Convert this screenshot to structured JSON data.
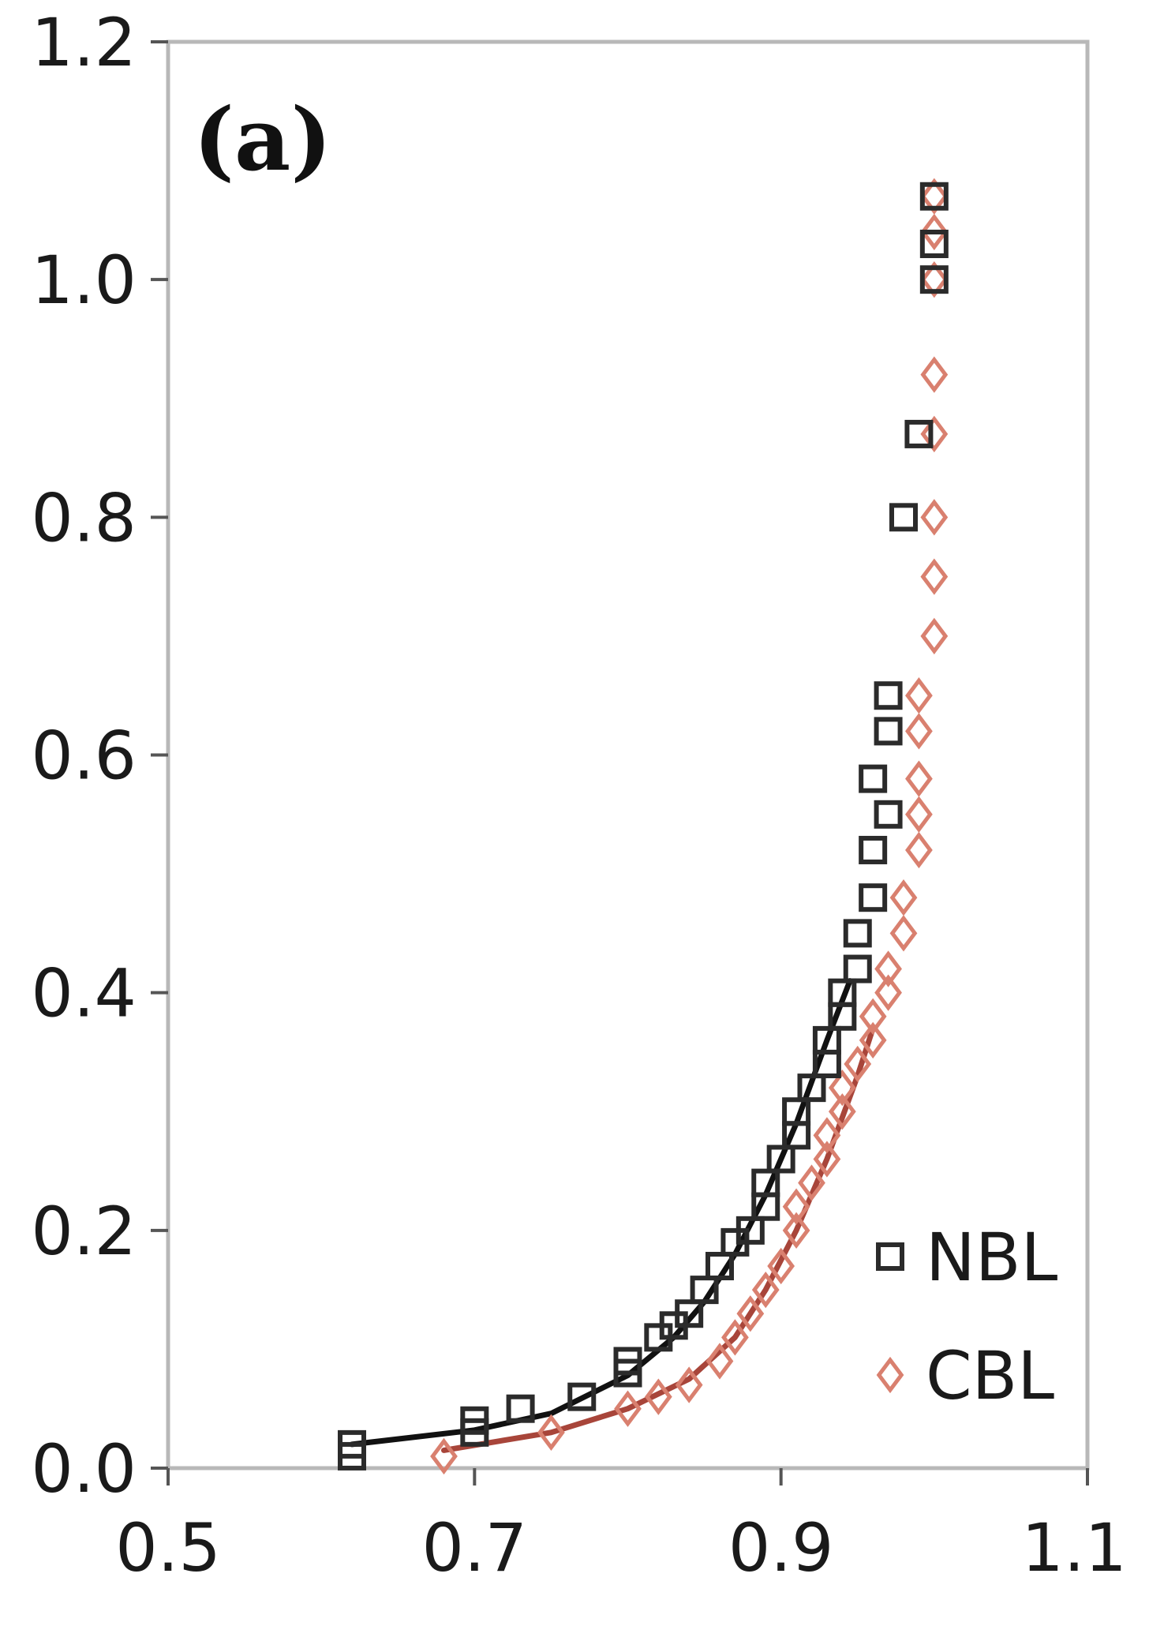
{
  "chart_data": {
    "type": "scatter",
    "panel_label": "(a)",
    "title": "",
    "xlabel": "",
    "ylabel": "",
    "xlim": [
      0.5,
      1.1
    ],
    "ylim": [
      0.0,
      1.2
    ],
    "xticks": [
      0.5,
      0.7,
      0.9,
      1.1
    ],
    "xtick_labels": [
      "0.5",
      "0.7",
      "0.9",
      "1.1"
    ],
    "yticks": [
      0.0,
      0.2,
      0.4,
      0.6,
      0.8,
      1.0,
      1.2
    ],
    "ytick_labels": [
      "0.0",
      "0.2",
      "0.4",
      "0.6",
      "0.8",
      "1.0",
      "1.2"
    ],
    "grid": false,
    "legend_position": "bottom-right",
    "series": [
      {
        "name": "NBL",
        "marker": "square",
        "color": "#2b2b2b",
        "fit_color": "#111111",
        "points": [
          [
            0.62,
            0.02
          ],
          [
            0.62,
            0.01
          ],
          [
            0.7,
            0.04
          ],
          [
            0.7,
            0.03
          ],
          [
            0.73,
            0.05
          ],
          [
            0.77,
            0.06
          ],
          [
            0.8,
            0.08
          ],
          [
            0.8,
            0.09
          ],
          [
            0.82,
            0.11
          ],
          [
            0.83,
            0.12
          ],
          [
            0.84,
            0.13
          ],
          [
            0.85,
            0.15
          ],
          [
            0.86,
            0.17
          ],
          [
            0.87,
            0.19
          ],
          [
            0.88,
            0.2
          ],
          [
            0.89,
            0.22
          ],
          [
            0.89,
            0.24
          ],
          [
            0.9,
            0.26
          ],
          [
            0.91,
            0.28
          ],
          [
            0.91,
            0.3
          ],
          [
            0.92,
            0.32
          ],
          [
            0.93,
            0.34
          ],
          [
            0.93,
            0.36
          ],
          [
            0.94,
            0.38
          ],
          [
            0.94,
            0.4
          ],
          [
            0.95,
            0.42
          ],
          [
            0.95,
            0.45
          ],
          [
            0.96,
            0.48
          ],
          [
            0.96,
            0.52
          ],
          [
            0.97,
            0.55
          ],
          [
            0.96,
            0.58
          ],
          [
            0.97,
            0.62
          ],
          [
            0.97,
            0.65
          ],
          [
            0.98,
            0.8
          ],
          [
            0.99,
            0.87
          ],
          [
            1.0,
            1.0
          ],
          [
            1.0,
            1.03
          ],
          [
            1.0,
            1.07
          ]
        ],
        "fit": [
          [
            0.62,
            0.02
          ],
          [
            0.7,
            0.032
          ],
          [
            0.75,
            0.046
          ],
          [
            0.8,
            0.078
          ],
          [
            0.83,
            0.11
          ],
          [
            0.85,
            0.14
          ],
          [
            0.87,
            0.18
          ],
          [
            0.89,
            0.23
          ],
          [
            0.91,
            0.29
          ],
          [
            0.93,
            0.36
          ],
          [
            0.945,
            0.41
          ]
        ]
      },
      {
        "name": "CBL",
        "marker": "diamond",
        "color": "#d9806f",
        "fit_color": "#a8453a",
        "points": [
          [
            0.68,
            0.01
          ],
          [
            0.75,
            0.03
          ],
          [
            0.8,
            0.05
          ],
          [
            0.82,
            0.06
          ],
          [
            0.84,
            0.07
          ],
          [
            0.86,
            0.09
          ],
          [
            0.87,
            0.11
          ],
          [
            0.88,
            0.13
          ],
          [
            0.89,
            0.15
          ],
          [
            0.9,
            0.17
          ],
          [
            0.91,
            0.2
          ],
          [
            0.91,
            0.22
          ],
          [
            0.92,
            0.24
          ],
          [
            0.93,
            0.26
          ],
          [
            0.93,
            0.28
          ],
          [
            0.94,
            0.3
          ],
          [
            0.94,
            0.32
          ],
          [
            0.95,
            0.34
          ],
          [
            0.96,
            0.36
          ],
          [
            0.96,
            0.38
          ],
          [
            0.97,
            0.4
          ],
          [
            0.97,
            0.42
          ],
          [
            0.98,
            0.45
          ],
          [
            0.98,
            0.48
          ],
          [
            0.99,
            0.52
          ],
          [
            0.99,
            0.55
          ],
          [
            0.99,
            0.58
          ],
          [
            0.99,
            0.62
          ],
          [
            0.99,
            0.65
          ],
          [
            1.0,
            0.7
          ],
          [
            1.0,
            0.75
          ],
          [
            1.0,
            0.8
          ],
          [
            1.0,
            0.87
          ],
          [
            1.0,
            0.92
          ],
          [
            1.0,
            1.0
          ],
          [
            1.0,
            1.04
          ],
          [
            1.0,
            1.07
          ]
        ],
        "fit": [
          [
            0.68,
            0.015
          ],
          [
            0.75,
            0.03
          ],
          [
            0.8,
            0.05
          ],
          [
            0.84,
            0.075
          ],
          [
            0.87,
            0.11
          ],
          [
            0.89,
            0.15
          ],
          [
            0.91,
            0.2
          ],
          [
            0.93,
            0.26
          ],
          [
            0.95,
            0.33
          ],
          [
            0.96,
            0.37
          ]
        ]
      }
    ]
  }
}
